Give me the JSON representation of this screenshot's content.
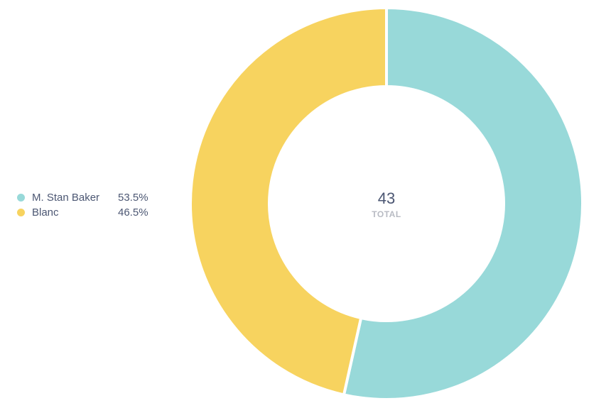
{
  "chart_data": {
    "type": "pie",
    "variant": "donut",
    "categories": [
      "M. Stan Baker",
      "Blanc"
    ],
    "values": [
      23,
      20
    ],
    "percent_labels": [
      "53.5%",
      "46.5%"
    ],
    "colors": [
      "#98d9d9",
      "#f7d35f"
    ],
    "total": "43",
    "total_label": "TOTAL",
    "legend_position": "left"
  }
}
